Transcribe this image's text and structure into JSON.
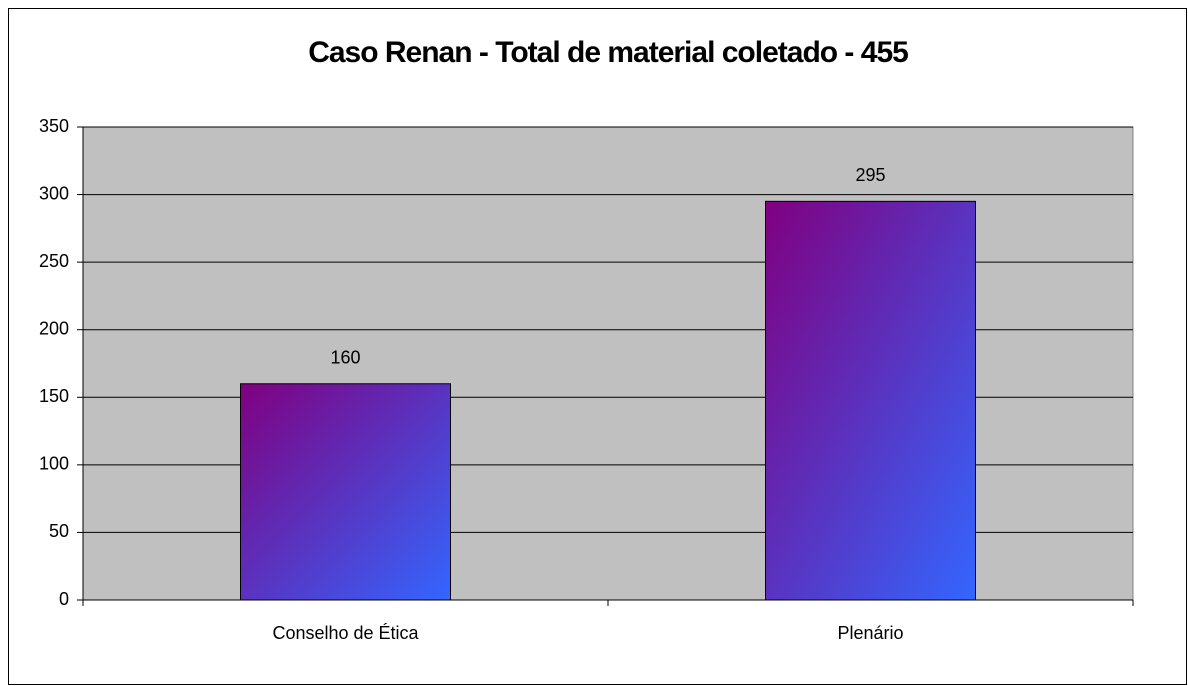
{
  "chart_data": {
    "type": "bar",
    "title": "Caso Renan - Total de material coletado - 455",
    "categories": [
      "Conselho de Ética",
      "Plenário"
    ],
    "values": [
      160,
      295
    ],
    "gradient": [
      "#800080",
      "#3366ff"
    ],
    "plot_background": "#c0c0c0",
    "ylim": [
      0,
      350
    ],
    "yticks": [
      0,
      50,
      100,
      150,
      200,
      250,
      300,
      350
    ],
    "grid": true
  }
}
